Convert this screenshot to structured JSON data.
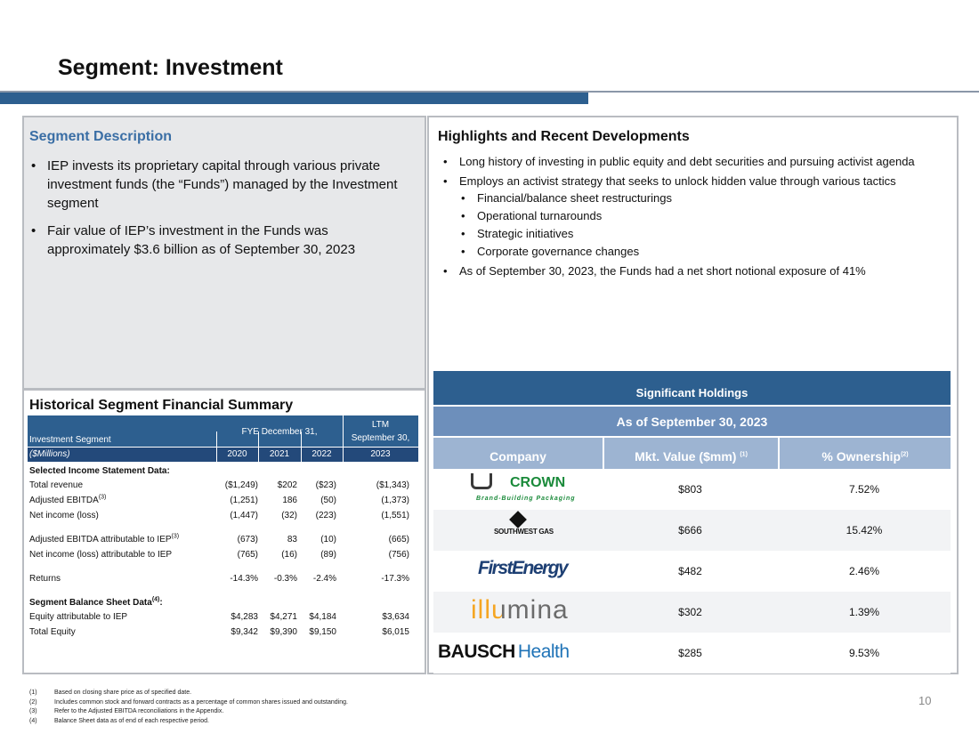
{
  "header": {
    "title": "Segment: Investment"
  },
  "description": {
    "heading": "Segment Description",
    "bullets": [
      "IEP invests its proprietary capital through various private investment funds (the “Funds”) managed by the Investment segment",
      "Fair value of IEP’s investment in the Funds was approximately $3.6 billion as of September 30, 2023"
    ]
  },
  "highlights": {
    "heading": "Highlights and Recent Developments",
    "bullets": [
      {
        "text": "Long history of investing in public equity and debt securities and pursuing activist agenda"
      },
      {
        "text": "Employs an activist strategy that seeks to unlock hidden value through various tactics",
        "sub": [
          "Financial/balance sheet restructurings",
          "Operational turnarounds",
          "Strategic initiatives",
          "Corporate governance changes"
        ]
      },
      {
        "text": "As of September 30, 2023, the Funds had a net short notional exposure of 41%"
      }
    ]
  },
  "summary": {
    "heading": "Historical Segment Financial Summary",
    "table": {
      "segment_label": "Investment Segment",
      "fye_label": "FYE December  31,",
      "ltm_label": [
        "LTM",
        "September 30,"
      ],
      "units": "($Millions)",
      "years": [
        "2020",
        "2021",
        "2022",
        "2023"
      ],
      "groups": [
        {
          "heading": "Selected Income Statement Data:",
          "rows": [
            {
              "label": "Total revenue",
              "values": [
                "($1,249)",
                "$202",
                "($23)",
                "($1,343)"
              ]
            },
            {
              "label": "Adjusted EBITDA",
              "sup": "(3)",
              "values": [
                "(1,251)",
                "186",
                "(50)",
                "(1,373)"
              ]
            },
            {
              "label": "Net income (loss)",
              "values": [
                "(1,447)",
                "(32)",
                "(223)",
                "(1,551)"
              ]
            }
          ]
        },
        {
          "rows": [
            {
              "label": "Adjusted EBITDA attributable to IEP",
              "sup": "(3)",
              "values": [
                "(673)",
                "83",
                "(10)",
                "(665)"
              ]
            },
            {
              "label": "Net income (loss) attributable to IEP",
              "values": [
                "(765)",
                "(16)",
                "(89)",
                "(756)"
              ]
            }
          ]
        },
        {
          "rows": [
            {
              "label": "Returns",
              "values": [
                "-14.3%",
                "-0.3%",
                "-2.4%",
                "-17.3%"
              ]
            }
          ]
        },
        {
          "heading": "Segment Balance Sheet Data",
          "heading_sup": "(4)",
          "heading_suffix": ":",
          "rows": [
            {
              "label": "Equity attributable to IEP",
              "values": [
                "$4,283",
                "$4,271",
                "$4,184",
                "$3,634"
              ]
            },
            {
              "label": "Total Equity",
              "values": [
                "$9,342",
                "$9,390",
                "$9,150",
                "$6,015"
              ]
            }
          ]
        }
      ]
    }
  },
  "holdings": {
    "title": "Significant Holdings",
    "subtitle": "As of September 30, 2023",
    "columns": [
      {
        "text": "Company"
      },
      {
        "text": "Mkt. Value ($mm) ",
        "sup": "(1)"
      },
      {
        "text": "% Ownership",
        "sup": "(2)"
      }
    ],
    "rows": [
      {
        "logo": "CROWN",
        "logo_sub": "Brand-Building Packaging",
        "value": "$803",
        "ownership": "7.52%"
      },
      {
        "logo": "SOUTHWEST GAS",
        "value": "$666",
        "ownership": "15.42%"
      },
      {
        "logo": "FirstEnergy",
        "value": "$482",
        "ownership": "2.46%"
      },
      {
        "logo": "illumina",
        "value": "$302",
        "ownership": "1.39%"
      },
      {
        "logo": "BAUSCH",
        "logo_sub": "Health",
        "value": "$285",
        "ownership": "9.53%"
      }
    ]
  },
  "footnotes": [
    {
      "num": "(1)",
      "text": "Based on closing share price as of specified date."
    },
    {
      "num": "(2)",
      "text": "Includes common stock and forward contracts as a percentage of common shares issued and outstanding."
    },
    {
      "num": "(3)",
      "text": "Refer to the Adjusted EBITDA reconciliations in the Appendix."
    },
    {
      "num": "(4)",
      "text": "Balance Sheet data as of end of each respective period."
    }
  ],
  "page_number": "10"
}
